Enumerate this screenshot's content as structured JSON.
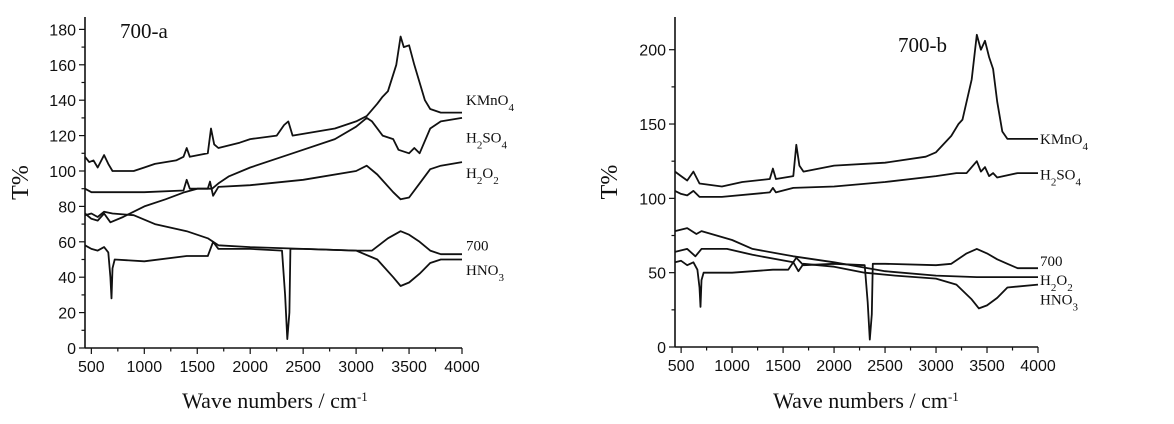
{
  "chart_data": [
    {
      "type": "line",
      "title": "700-a",
      "xlabel": "Wave numbers / cm-1",
      "ylabel": "T%",
      "xlim": [
        440,
        4000
      ],
      "ylim": [
        0,
        187
      ],
      "xticks": [
        500,
        1000,
        1500,
        2000,
        2500,
        3000,
        3500,
        4000
      ],
      "yticks": [
        0,
        20,
        40,
        60,
        80,
        100,
        120,
        140,
        160,
        180
      ],
      "grid": false,
      "line_color": "#111111",
      "series": [
        {
          "name": "KMnO4",
          "label_y": 140,
          "points": [
            [
              440,
              108
            ],
            [
              480,
              105
            ],
            [
              520,
              106
            ],
            [
              560,
              102
            ],
            [
              620,
              109
            ],
            [
              660,
              104
            ],
            [
              700,
              100
            ],
            [
              900,
              100
            ],
            [
              1000,
              102
            ],
            [
              1100,
              104
            ],
            [
              1300,
              106
            ],
            [
              1370,
              108
            ],
            [
              1400,
              113
            ],
            [
              1430,
              108
            ],
            [
              1600,
              110
            ],
            [
              1630,
              124
            ],
            [
              1660,
              115
            ],
            [
              1700,
              113
            ],
            [
              1900,
              116
            ],
            [
              2000,
              118
            ],
            [
              2250,
              120
            ],
            [
              2320,
              126
            ],
            [
              2360,
              128
            ],
            [
              2400,
              120
            ],
            [
              2800,
              124
            ],
            [
              3000,
              128
            ],
            [
              3100,
              131
            ],
            [
              3200,
              138
            ],
            [
              3250,
              142
            ],
            [
              3300,
              145
            ],
            [
              3380,
              160
            ],
            [
              3420,
              176
            ],
            [
              3450,
              170
            ],
            [
              3500,
              171
            ],
            [
              3550,
              160
            ],
            [
              3600,
              150
            ],
            [
              3650,
              140
            ],
            [
              3700,
              135
            ],
            [
              3800,
              133
            ],
            [
              4000,
              133
            ]
          ]
        },
        {
          "name": "H2SO4",
          "label_y": 119,
          "points": [
            [
              440,
              76
            ],
            [
              500,
              73
            ],
            [
              560,
              72
            ],
            [
              620,
              76
            ],
            [
              680,
              71
            ],
            [
              800,
              74
            ],
            [
              1000,
              80
            ],
            [
              1200,
              84
            ],
            [
              1380,
              88
            ],
            [
              1500,
              90
            ],
            [
              1640,
              90
            ],
            [
              1700,
              93
            ],
            [
              1800,
              97
            ],
            [
              2000,
              102
            ],
            [
              2400,
              110
            ],
            [
              2800,
              118
            ],
            [
              3000,
              125
            ],
            [
              3100,
              130
            ],
            [
              3150,
              128
            ],
            [
              3250,
              120
            ],
            [
              3350,
              118
            ],
            [
              3400,
              112
            ],
            [
              3500,
              110
            ],
            [
              3550,
              113
            ],
            [
              3600,
              110
            ],
            [
              3700,
              124
            ],
            [
              3800,
              128
            ],
            [
              4000,
              130
            ]
          ]
        },
        {
          "name": "H2O2",
          "label_y": 99,
          "points": [
            [
              440,
              90
            ],
            [
              500,
              88
            ],
            [
              1000,
              88
            ],
            [
              1370,
              89
            ],
            [
              1400,
              95
            ],
            [
              1430,
              90
            ],
            [
              1600,
              90
            ],
            [
              1620,
              94
            ],
            [
              1650,
              86
            ],
            [
              1700,
              91
            ],
            [
              2000,
              92
            ],
            [
              2500,
              95
            ],
            [
              3000,
              100
            ],
            [
              3100,
              103
            ],
            [
              3200,
              98
            ],
            [
              3350,
              88
            ],
            [
              3420,
              84
            ],
            [
              3500,
              85
            ],
            [
              3600,
              93
            ],
            [
              3700,
              101
            ],
            [
              3800,
              103
            ],
            [
              4000,
              105
            ]
          ]
        },
        {
          "name": "700",
          "label_y": 58,
          "points": [
            [
              440,
              75
            ],
            [
              500,
              76
            ],
            [
              560,
              74
            ],
            [
              620,
              77
            ],
            [
              700,
              76
            ],
            [
              900,
              75
            ],
            [
              1100,
              70
            ],
            [
              1400,
              66
            ],
            [
              1600,
              62
            ],
            [
              1700,
              58
            ],
            [
              2000,
              57
            ],
            [
              2500,
              56
            ],
            [
              3000,
              55
            ],
            [
              3150,
              55
            ],
            [
              3300,
              62
            ],
            [
              3420,
              66
            ],
            [
              3500,
              64
            ],
            [
              3600,
              60
            ],
            [
              3700,
              55
            ],
            [
              3800,
              53
            ],
            [
              4000,
              53
            ]
          ]
        },
        {
          "name": "HNO3",
          "label_y": 44,
          "points": [
            [
              440,
              58
            ],
            [
              500,
              56
            ],
            [
              560,
              55
            ],
            [
              620,
              57
            ],
            [
              660,
              54
            ],
            [
              680,
              40
            ],
            [
              690,
              28
            ],
            [
              700,
              45
            ],
            [
              720,
              50
            ],
            [
              1000,
              49
            ],
            [
              1400,
              52
            ],
            [
              1600,
              52
            ],
            [
              1650,
              60
            ],
            [
              1700,
              56
            ],
            [
              2000,
              56
            ],
            [
              2300,
              55
            ],
            [
              2330,
              30
            ],
            [
              2350,
              5
            ],
            [
              2370,
              20
            ],
            [
              2380,
              56
            ],
            [
              2500,
              56
            ],
            [
              3000,
              55
            ],
            [
              3200,
              50
            ],
            [
              3350,
              40
            ],
            [
              3420,
              35
            ],
            [
              3500,
              37
            ],
            [
              3600,
              42
            ],
            [
              3700,
              48
            ],
            [
              3800,
              50
            ],
            [
              4000,
              50
            ]
          ]
        }
      ]
    },
    {
      "type": "line",
      "title": "700-b",
      "xlabel": "Wave numbers / cm-1",
      "ylabel": "T%",
      "xlim": [
        440,
        4000
      ],
      "ylim": [
        0,
        222
      ],
      "xticks": [
        500,
        1000,
        1500,
        2000,
        2500,
        3000,
        3500,
        4000
      ],
      "yticks": [
        0,
        50,
        100,
        150,
        200
      ],
      "grid": false,
      "line_color": "#111111",
      "series": [
        {
          "name": "KMnO4",
          "label_y": 140,
          "points": [
            [
              440,
              118
            ],
            [
              500,
              115
            ],
            [
              560,
              112
            ],
            [
              620,
              118
            ],
            [
              680,
              110
            ],
            [
              900,
              108
            ],
            [
              1100,
              111
            ],
            [
              1370,
              113
            ],
            [
              1400,
              120
            ],
            [
              1430,
              113
            ],
            [
              1600,
              115
            ],
            [
              1630,
              136
            ],
            [
              1660,
              122
            ],
            [
              1700,
              118
            ],
            [
              2000,
              122
            ],
            [
              2500,
              124
            ],
            [
              2900,
              128
            ],
            [
              3000,
              131
            ],
            [
              3150,
              142
            ],
            [
              3220,
              150
            ],
            [
              3260,
              153
            ],
            [
              3350,
              180
            ],
            [
              3400,
              210
            ],
            [
              3440,
              200
            ],
            [
              3480,
              206
            ],
            [
              3520,
              195
            ],
            [
              3560,
              187
            ],
            [
              3600,
              165
            ],
            [
              3650,
              145
            ],
            [
              3700,
              140
            ],
            [
              4000,
              140
            ]
          ]
        },
        {
          "name": "H2SO4",
          "label_y": 116,
          "points": [
            [
              440,
              105
            ],
            [
              500,
              103
            ],
            [
              560,
              102
            ],
            [
              620,
              105
            ],
            [
              680,
              101
            ],
            [
              900,
              101
            ],
            [
              1370,
              104
            ],
            [
              1400,
              107
            ],
            [
              1430,
              104
            ],
            [
              1600,
              107
            ],
            [
              2000,
              108
            ],
            [
              2500,
              111
            ],
            [
              3000,
              115
            ],
            [
              3200,
              117
            ],
            [
              3300,
              117
            ],
            [
              3400,
              125
            ],
            [
              3440,
              118
            ],
            [
              3480,
              121
            ],
            [
              3520,
              115
            ],
            [
              3560,
              117
            ],
            [
              3600,
              114
            ],
            [
              3800,
              117
            ],
            [
              4000,
              117
            ]
          ]
        },
        {
          "name": "700",
          "label_y": 58,
          "points": [
            [
              440,
              57
            ],
            [
              500,
              58
            ],
            [
              560,
              55
            ],
            [
              620,
              57
            ],
            [
              660,
              52
            ],
            [
              680,
              40
            ],
            [
              690,
              27
            ],
            [
              700,
              45
            ],
            [
              720,
              50
            ],
            [
              1000,
              50
            ],
            [
              1400,
              52
            ],
            [
              1550,
              52
            ],
            [
              1630,
              60
            ],
            [
              1700,
              55
            ],
            [
              2000,
              56
            ],
            [
              2300,
              55
            ],
            [
              2330,
              30
            ],
            [
              2350,
              5
            ],
            [
              2370,
              22
            ],
            [
              2380,
              56
            ],
            [
              2500,
              56
            ],
            [
              3000,
              55
            ],
            [
              3150,
              56
            ],
            [
              3300,
              63
            ],
            [
              3400,
              66
            ],
            [
              3500,
              63
            ],
            [
              3600,
              59
            ],
            [
              3700,
              56
            ],
            [
              3800,
              53
            ],
            [
              4000,
              53
            ]
          ]
        },
        {
          "name": "H2O2",
          "label_y": 45,
          "points": [
            [
              440,
              78
            ],
            [
              560,
              80
            ],
            [
              650,
              76
            ],
            [
              700,
              78
            ],
            [
              1000,
              72
            ],
            [
              1200,
              66
            ],
            [
              1600,
              61
            ],
            [
              2000,
              57
            ],
            [
              2500,
              51
            ],
            [
              3000,
              48
            ],
            [
              3400,
              47
            ],
            [
              4000,
              47
            ]
          ]
        },
        {
          "name": "HNO3",
          "label_y": 32,
          "points": [
            [
              440,
              64
            ],
            [
              560,
              66
            ],
            [
              640,
              61
            ],
            [
              700,
              66
            ],
            [
              950,
              66
            ],
            [
              1200,
              62
            ],
            [
              1600,
              57
            ],
            [
              1650,
              51
            ],
            [
              1700,
              56
            ],
            [
              2000,
              54
            ],
            [
              2300,
              50
            ],
            [
              2600,
              48
            ],
            [
              3000,
              46
            ],
            [
              3200,
              42
            ],
            [
              3350,
              32
            ],
            [
              3420,
              26
            ],
            [
              3500,
              28
            ],
            [
              3600,
              33
            ],
            [
              3700,
              40
            ],
            [
              4000,
              42
            ]
          ]
        }
      ]
    }
  ]
}
